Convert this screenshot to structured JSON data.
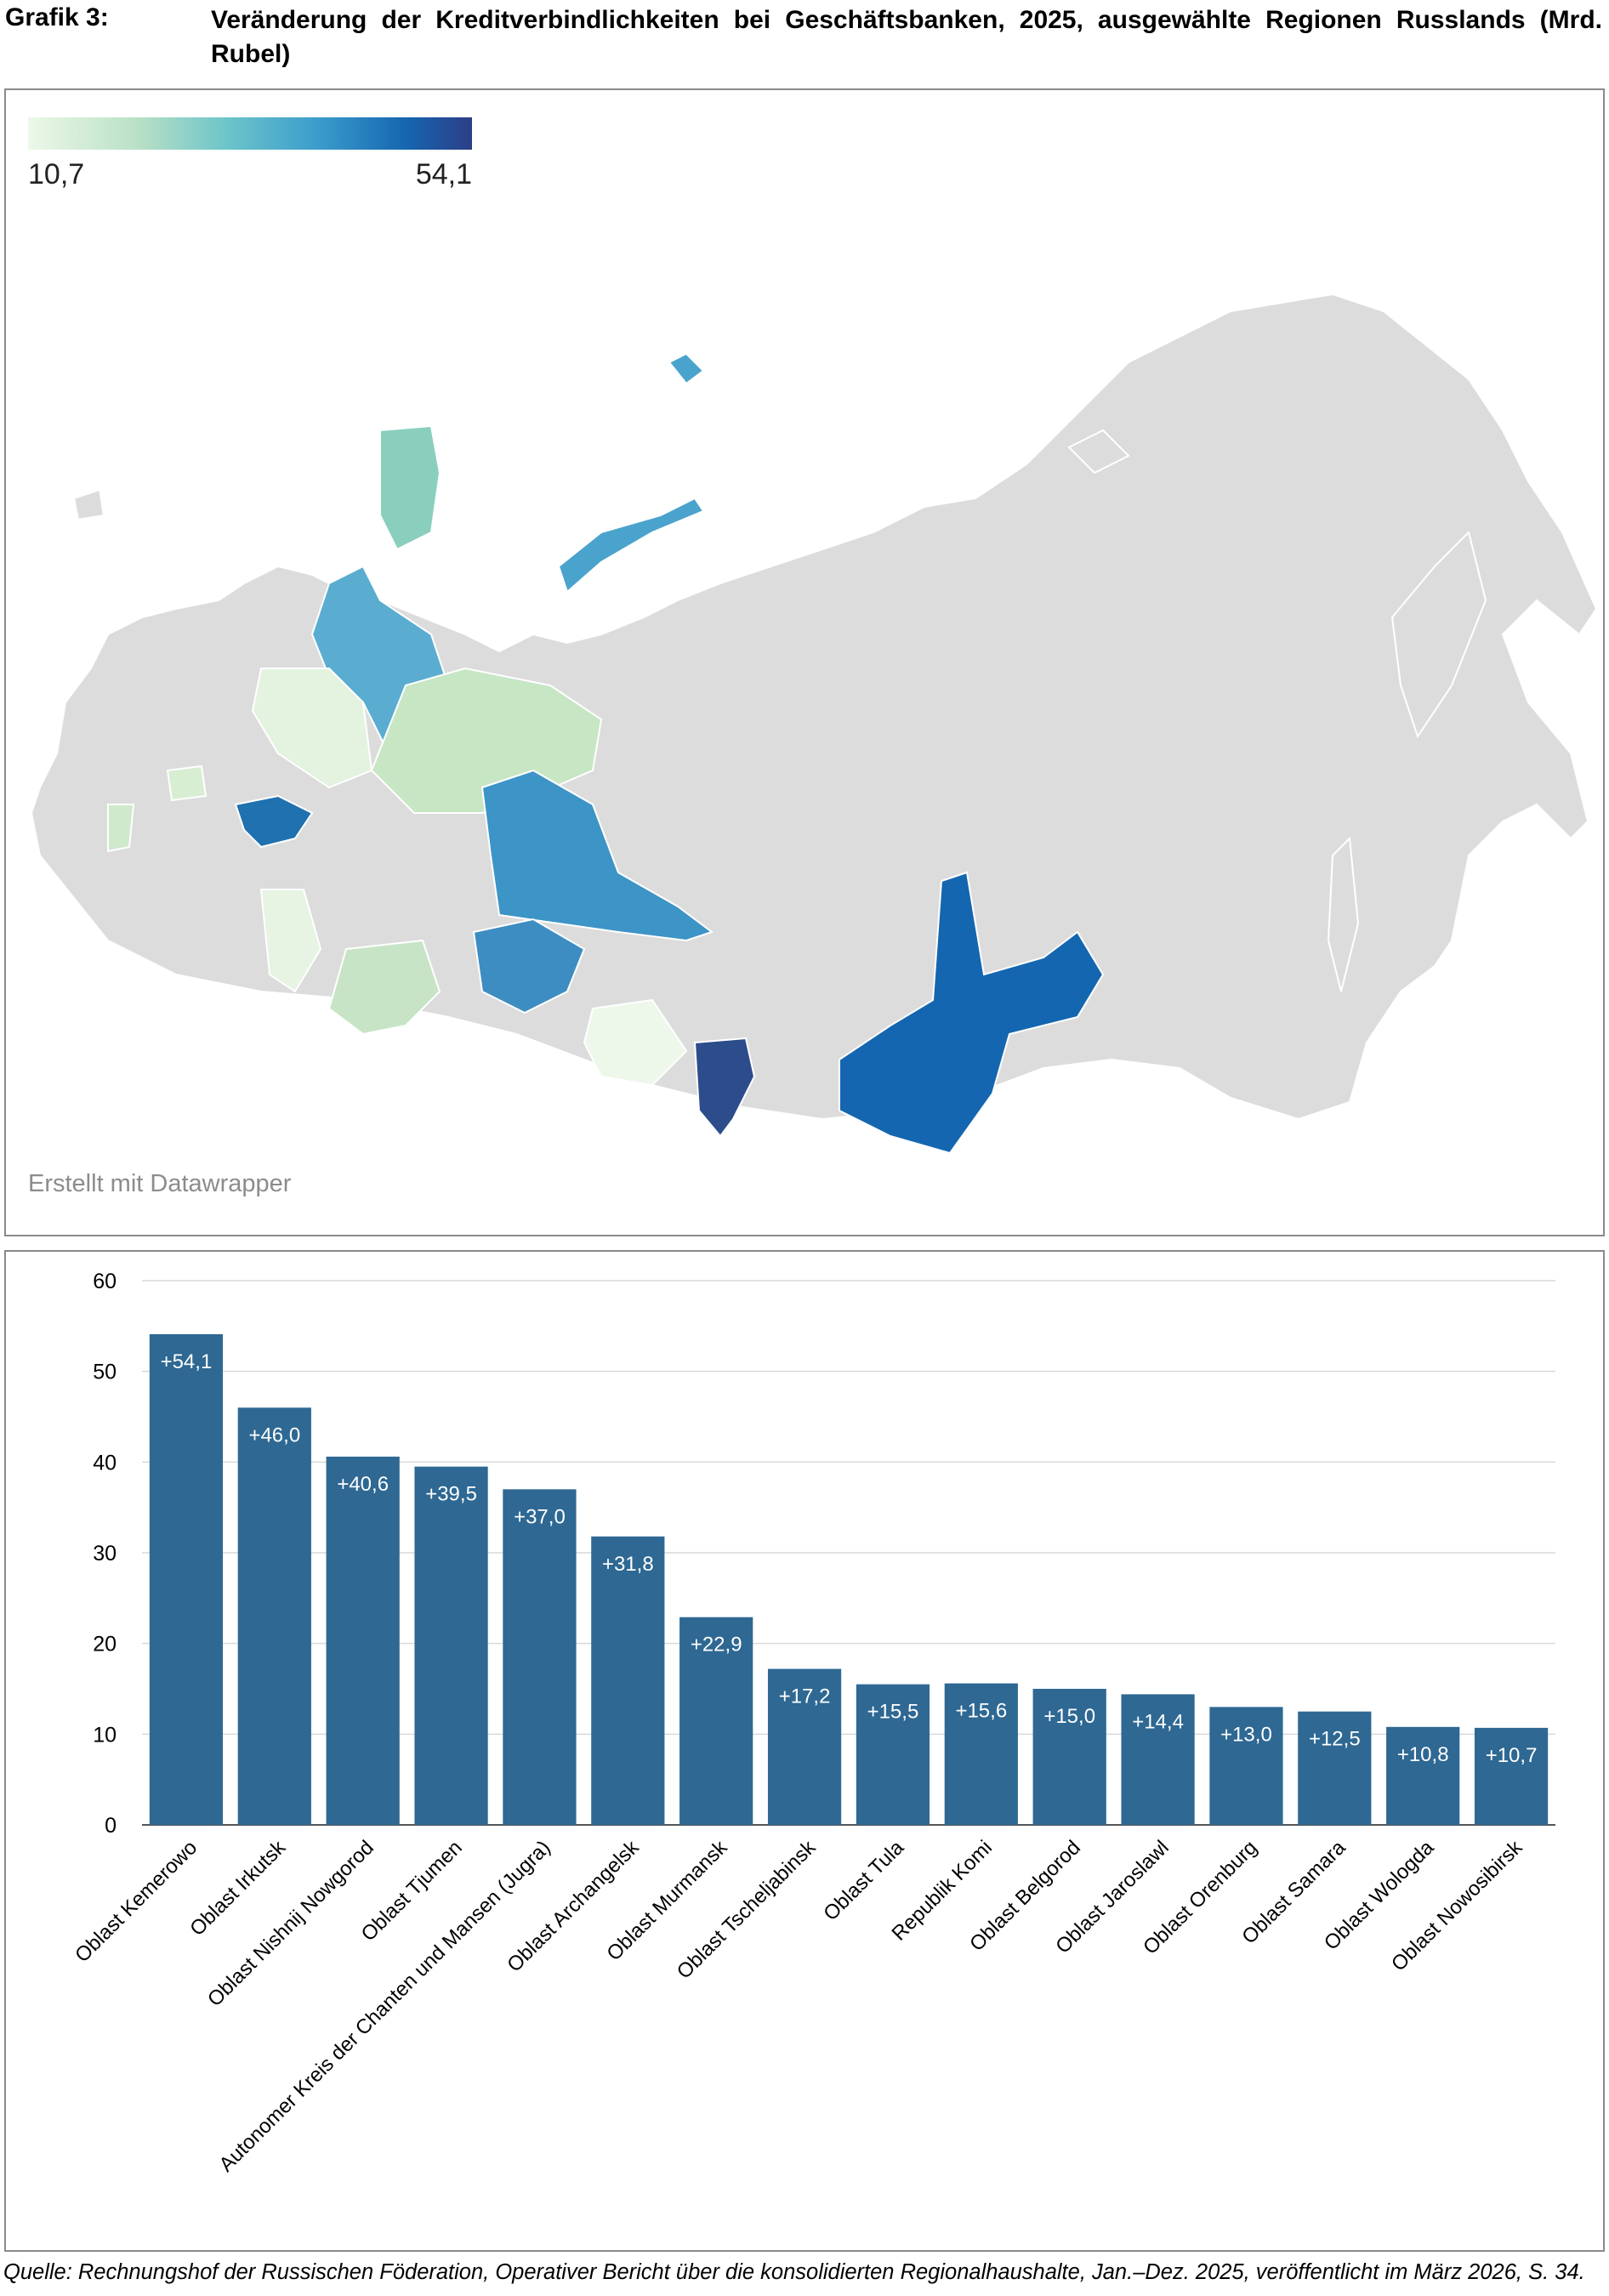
{
  "header": {
    "label": "Grafik 3:",
    "title": "Veränderung der Kreditverbindlichkeiten bei Geschäftsbanken, 2025, ausgewählte Regionen Russlands (Mrd. Rubel)"
  },
  "map": {
    "legend_min": "10,7",
    "legend_max": "54,1",
    "credit": "Erstellt mit Datawrapper",
    "colors": {
      "base": "#dcdcdc",
      "lowest": "#edf8e9",
      "highest": "#2c3e87"
    }
  },
  "chart_data": {
    "type": "bar",
    "categories": [
      "Oblast Kemerowo",
      "Oblast Irkutsk",
      "Oblast Nishnij Nowgorod",
      "Oblast Tjumen",
      "Autonomer Kreis der Chanten und Mansen (Jugra)",
      "Oblast Archangelsk",
      "Oblast Murmansk",
      "Oblast Tscheljabinsk",
      "Oblast Tula",
      "Republik Komi",
      "Oblast Belgorod",
      "Oblast Jaroslawl",
      "Oblast Orenburg",
      "Oblast Samara",
      "Oblast Wologda",
      "Oblast Nowosibirsk"
    ],
    "values": [
      54.1,
      46.0,
      40.6,
      39.5,
      37.0,
      31.8,
      22.9,
      17.2,
      15.5,
      15.6,
      15.0,
      14.4,
      13.0,
      12.5,
      10.8,
      10.7
    ],
    "value_labels": [
      "+54,1",
      "+46,0",
      "+40,6",
      "+39,5",
      "+37,0",
      "+31,8",
      "+22,9",
      "+17,2",
      "+15,5",
      "+15,6",
      "+15,0",
      "+14,4",
      "+13,0",
      "+12,5",
      "+10,8",
      "+10,7"
    ],
    "yticks": [
      "0",
      "10",
      "20",
      "30",
      "40",
      "50",
      "60"
    ],
    "ylim": [
      0,
      60
    ],
    "grid": true,
    "bar_color": "#2e6893"
  },
  "source": "Quelle: Rechnungshof der Russischen Föderation, Operativer Bericht über die konsolidierten Regionalhaushalte, Jan.–Dez. 2025, veröffentlicht im März 2026, S. 34."
}
